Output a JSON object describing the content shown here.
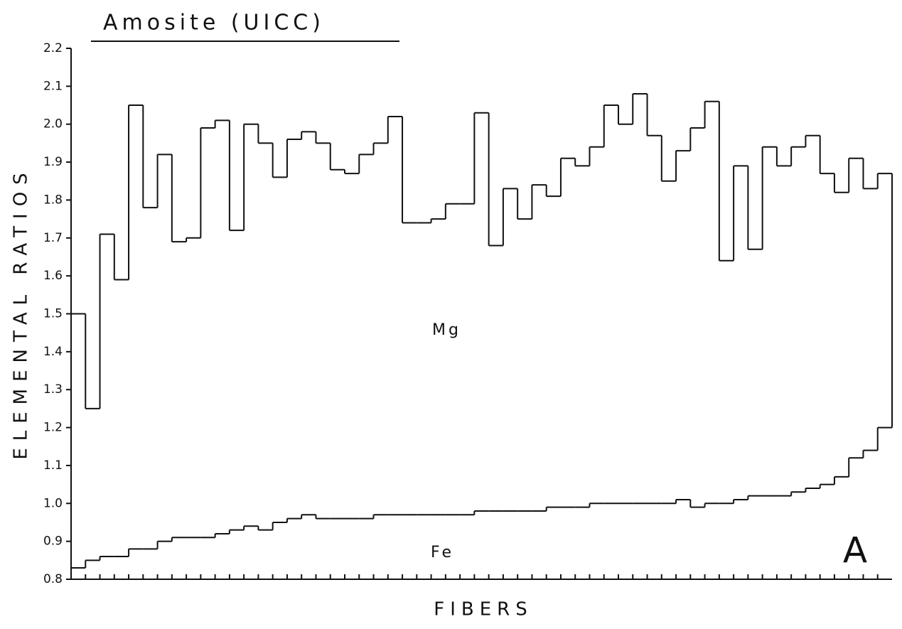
{
  "chart_data": {
    "type": "step",
    "title": "Amosite (UICC)",
    "y_label": "ELEMENTAL RATIOS",
    "x_label": "FIBERS",
    "annotations": [
      "Mg",
      "Fe",
      "A"
    ],
    "series": [
      {
        "name": "Mg",
        "color": "#111111",
        "values": [
          1.5,
          1.25,
          1.71,
          1.59,
          2.05,
          1.78,
          1.92,
          1.69,
          1.7,
          1.99,
          2.01,
          1.72,
          2.0,
          1.95,
          1.86,
          1.96,
          1.98,
          1.95,
          1.88,
          1.87,
          1.92,
          1.95,
          2.02,
          1.74,
          1.74,
          1.75,
          1.79,
          1.79,
          2.03,
          1.68,
          1.83,
          1.75,
          1.84,
          1.81,
          1.91,
          1.89,
          1.94,
          2.05,
          2.0,
          2.08,
          1.97,
          1.85,
          1.93,
          1.99,
          2.06,
          1.64,
          1.89,
          1.67,
          1.94,
          1.89,
          1.94,
          1.97,
          1.87,
          1.82,
          1.91,
          1.83,
          1.87
        ]
      },
      {
        "name": "Fe",
        "color": "#111111",
        "values": [
          0.83,
          0.85,
          0.86,
          0.86,
          0.88,
          0.88,
          0.9,
          0.91,
          0.91,
          0.91,
          0.92,
          0.93,
          0.94,
          0.93,
          0.95,
          0.96,
          0.97,
          0.96,
          0.96,
          0.96,
          0.96,
          0.97,
          0.97,
          0.97,
          0.97,
          0.97,
          0.97,
          0.97,
          0.98,
          0.98,
          0.98,
          0.98,
          0.98,
          0.99,
          0.99,
          0.99,
          1.0,
          1.0,
          1.0,
          1.0,
          1.0,
          1.0,
          1.01,
          0.99,
          1.0,
          1.0,
          1.01,
          1.02,
          1.02,
          1.02,
          1.03,
          1.04,
          1.05,
          1.07,
          1.12,
          1.14,
          1.2
        ]
      }
    ],
    "ylim": [
      0.8,
      2.2
    ],
    "yticks": [
      0.8,
      0.9,
      {
        "value": 1,
        "label": "1.0"
      },
      1.1,
      1.2,
      1.3,
      1.4,
      1.5,
      1.6,
      1.7,
      1.8,
      1.9,
      {
        "value": 2,
        "label": "2.0"
      },
      2.1,
      2.2
    ]
  }
}
